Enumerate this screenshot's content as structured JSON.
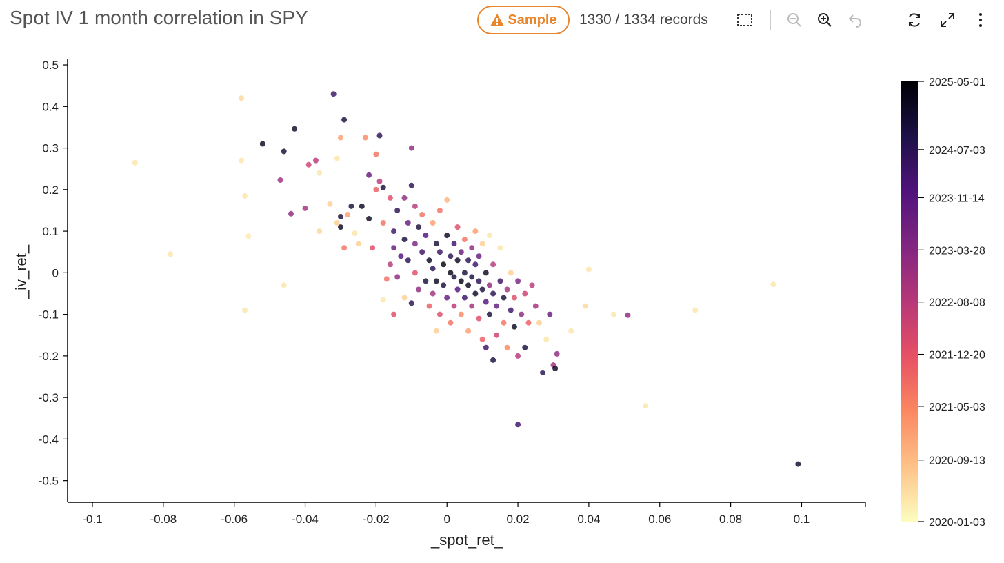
{
  "header": {
    "title": "Spot IV 1 month correlation in SPY",
    "sample_label": "Sample",
    "records_text": "1330 / 1334 records"
  },
  "toolbar": {
    "icons": [
      "select-box-icon",
      "zoom-out-icon",
      "zoom-in-icon",
      "undo-icon",
      "refresh-icon",
      "expand-icon",
      "more-vertical-icon"
    ]
  },
  "colors": {
    "accent": "#e8862e",
    "colormap": [
      "#fcfdbf",
      "#fec287",
      "#fb8861",
      "#e65164",
      "#b73779",
      "#822681",
      "#51127c",
      "#1d1147",
      "#000004"
    ]
  },
  "chart_data": {
    "type": "scatter",
    "xlabel": "_spot_ret_",
    "ylabel": "_iv_ret_",
    "xlim": [
      -0.107,
      0.118
    ],
    "ylim": [
      -0.552,
      0.515
    ],
    "x_ticks": [
      -0.1,
      -0.08,
      -0.06,
      -0.04,
      -0.02,
      0,
      0.02,
      0.04,
      0.06,
      0.08,
      0.1
    ],
    "x_tick_labels": [
      "-0.1",
      "-0.08",
      "-0.06",
      "-0.04",
      "-0.02",
      "0",
      "0.02",
      "0.04",
      "0.06",
      "0.08",
      "0.1"
    ],
    "y_ticks": [
      0.5,
      0.4,
      0.3,
      0.2,
      0.1,
      0,
      -0.1,
      -0.2,
      -0.3,
      -0.4,
      -0.5
    ],
    "y_tick_labels": [
      "0.5",
      "0.4",
      "0.3",
      "0.2",
      "0.1",
      "0",
      "-0.1",
      "-0.2",
      "-0.3",
      "-0.4",
      "-0.5"
    ],
    "colorbar": {
      "label_values": [
        1,
        0.845,
        0.736,
        0.617,
        0.499,
        0.38,
        0.262,
        0.14,
        0
      ],
      "labels": [
        "2025-05-01",
        "2024-07-03",
        "2023-11-14",
        "2023-03-28",
        "2022-08-08",
        "2021-12-20",
        "2021-05-03",
        "2020-09-13",
        "2020-01-03"
      ]
    },
    "point_color_value": "date mapped to [0,1] (0 = 2020-01-03, 1 = 2025-05-01)",
    "points": [
      [
        -0.088,
        0.265,
        0.05
      ],
      [
        -0.078,
        0.045,
        0.05
      ],
      [
        -0.058,
        0.42,
        0.08
      ],
      [
        -0.058,
        0.27,
        0.05
      ],
      [
        -0.057,
        0.185,
        0.05
      ],
      [
        -0.057,
        -0.09,
        0.05
      ],
      [
        -0.056,
        0.088,
        0.04
      ],
      [
        -0.052,
        0.31,
        0.95
      ],
      [
        -0.047,
        0.223,
        0.55
      ],
      [
        -0.046,
        0.292,
        0.92
      ],
      [
        -0.046,
        -0.03,
        0.05
      ],
      [
        -0.044,
        0.142,
        0.6
      ],
      [
        -0.043,
        0.346,
        0.93
      ],
      [
        -0.04,
        0.155,
        0.55
      ],
      [
        -0.039,
        0.26,
        0.45
      ],
      [
        -0.037,
        0.27,
        0.5
      ],
      [
        -0.036,
        0.24,
        0.05
      ],
      [
        -0.036,
        0.1,
        0.08
      ],
      [
        -0.033,
        0.165,
        0.1
      ],
      [
        -0.032,
        0.43,
        0.8
      ],
      [
        -0.031,
        0.12,
        0.1
      ],
      [
        -0.031,
        0.275,
        0.05
      ],
      [
        -0.03,
        0.325,
        0.2
      ],
      [
        -0.03,
        0.135,
        0.9
      ],
      [
        -0.03,
        0.11,
        0.95
      ],
      [
        -0.029,
        0.368,
        0.9
      ],
      [
        -0.029,
        0.06,
        0.3
      ],
      [
        -0.028,
        0.14,
        0.2
      ],
      [
        -0.027,
        0.16,
        0.9
      ],
      [
        -0.026,
        0.095,
        0.05
      ],
      [
        -0.025,
        0.07,
        0.1
      ],
      [
        -0.024,
        0.16,
        0.95
      ],
      [
        -0.023,
        0.325,
        0.25
      ],
      [
        -0.022,
        0.235,
        0.7
      ],
      [
        -0.022,
        0.13,
        0.95
      ],
      [
        -0.021,
        0.06,
        0.4
      ],
      [
        -0.02,
        0.285,
        0.3
      ],
      [
        -0.02,
        0.2,
        0.35
      ],
      [
        -0.019,
        0.33,
        0.85
      ],
      [
        -0.019,
        0.22,
        0.5
      ],
      [
        -0.018,
        0.205,
        0.9
      ],
      [
        -0.018,
        0.12,
        0.3
      ],
      [
        -0.018,
        -0.065,
        0.05
      ],
      [
        -0.017,
        -0.015,
        0.3
      ],
      [
        -0.016,
        0.18,
        0.4
      ],
      [
        -0.016,
        0.02,
        0.5
      ],
      [
        -0.015,
        0.1,
        0.8
      ],
      [
        -0.015,
        0.06,
        0.7
      ],
      [
        -0.015,
        -0.1,
        0.4
      ],
      [
        -0.014,
        0.15,
        0.85
      ],
      [
        -0.014,
        -0.01,
        0.6
      ],
      [
        -0.013,
        0.04,
        0.75
      ],
      [
        -0.012,
        0.18,
        0.6
      ],
      [
        -0.012,
        0.08,
        0.9
      ],
      [
        -0.012,
        -0.06,
        0.1
      ],
      [
        -0.011,
        0.12,
        0.7
      ],
      [
        -0.011,
        0.03,
        0.85
      ],
      [
        -0.01,
        0.3,
        0.6
      ],
      [
        -0.01,
        0.21,
        0.85
      ],
      [
        -0.01,
        -0.073,
        0.85
      ],
      [
        -0.009,
        0.16,
        0.5
      ],
      [
        -0.009,
        0.07,
        0.65
      ],
      [
        -0.009,
        0.0,
        0.4
      ],
      [
        -0.008,
        0.11,
        0.9
      ],
      [
        -0.008,
        -0.04,
        0.6
      ],
      [
        -0.007,
        0.05,
        0.8
      ],
      [
        -0.007,
        0.14,
        0.3
      ],
      [
        -0.006,
        -0.02,
        0.9
      ],
      [
        -0.006,
        0.09,
        0.75
      ],
      [
        -0.005,
        0.03,
        0.95
      ],
      [
        -0.005,
        -0.08,
        0.35
      ],
      [
        -0.004,
        0.12,
        0.2
      ],
      [
        -0.004,
        0.01,
        0.85
      ],
      [
        -0.004,
        -0.05,
        0.55
      ],
      [
        -0.003,
        0.07,
        0.9
      ],
      [
        -0.003,
        -0.02,
        0.95
      ],
      [
        -0.003,
        -0.14,
        0.1
      ],
      [
        -0.002,
        0.05,
        0.8
      ],
      [
        -0.002,
        0.15,
        0.3
      ],
      [
        -0.002,
        -0.1,
        0.4
      ],
      [
        -0.001,
        0.02,
        0.98
      ],
      [
        -0.001,
        -0.03,
        0.9
      ],
      [
        0.0,
        0.09,
        0.95
      ],
      [
        0.0,
        -0.06,
        0.7
      ],
      [
        0.0,
        0.175,
        0.15
      ],
      [
        0.001,
        0.0,
        0.97
      ],
      [
        0.001,
        0.04,
        0.85
      ],
      [
        0.001,
        -0.12,
        0.3
      ],
      [
        0.002,
        -0.01,
        0.9
      ],
      [
        0.002,
        0.07,
        0.8
      ],
      [
        0.002,
        -0.08,
        0.5
      ],
      [
        0.003,
        0.03,
        0.95
      ],
      [
        0.003,
        -0.04,
        0.75
      ],
      [
        0.003,
        0.11,
        0.4
      ],
      [
        0.004,
        -0.02,
        0.98
      ],
      [
        0.004,
        0.05,
        0.7
      ],
      [
        0.004,
        -0.1,
        0.25
      ],
      [
        0.005,
        0.0,
        0.9
      ],
      [
        0.005,
        -0.06,
        0.8
      ],
      [
        0.005,
        0.08,
        0.3
      ],
      [
        0.006,
        0.03,
        0.85
      ],
      [
        0.006,
        -0.03,
        0.95
      ],
      [
        0.006,
        -0.14,
        0.2
      ],
      [
        0.007,
        0.06,
        0.6
      ],
      [
        0.007,
        -0.01,
        0.9
      ],
      [
        0.007,
        -0.08,
        0.55
      ],
      [
        0.008,
        0.02,
        0.8
      ],
      [
        0.008,
        -0.05,
        0.95
      ],
      [
        0.008,
        0.1,
        0.2
      ],
      [
        0.009,
        -0.02,
        0.85
      ],
      [
        0.009,
        -0.11,
        0.4
      ],
      [
        0.009,
        0.04,
        0.7
      ],
      [
        0.01,
        -0.04,
        0.9
      ],
      [
        0.01,
        -0.16,
        0.35
      ],
      [
        0.01,
        0.07,
        0.1
      ],
      [
        0.011,
        -0.07,
        0.75
      ],
      [
        0.011,
        0.0,
        0.95
      ],
      [
        0.011,
        -0.18,
        0.8
      ],
      [
        0.012,
        -0.03,
        0.6
      ],
      [
        0.012,
        -0.1,
        0.9
      ],
      [
        0.012,
        0.09,
        0.05
      ],
      [
        0.013,
        -0.21,
        0.9
      ],
      [
        0.013,
        -0.05,
        0.85
      ],
      [
        0.013,
        0.02,
        0.5
      ],
      [
        0.014,
        -0.08,
        0.7
      ],
      [
        0.014,
        -0.15,
        0.45
      ],
      [
        0.015,
        -0.02,
        0.8
      ],
      [
        0.015,
        0.06,
        0.05
      ],
      [
        0.016,
        -0.06,
        0.9
      ],
      [
        0.016,
        -0.12,
        0.3
      ],
      [
        0.017,
        -0.04,
        0.55
      ],
      [
        0.017,
        -0.18,
        0.25
      ],
      [
        0.018,
        -0.09,
        0.8
      ],
      [
        0.018,
        0.0,
        0.1
      ],
      [
        0.019,
        -0.13,
        0.95
      ],
      [
        0.019,
        -0.06,
        0.4
      ],
      [
        0.02,
        -0.365,
        0.8
      ],
      [
        0.02,
        -0.02,
        0.65
      ],
      [
        0.02,
        -0.2,
        0.5
      ],
      [
        0.021,
        -0.1,
        0.6
      ],
      [
        0.022,
        -0.18,
        0.9
      ],
      [
        0.022,
        -0.05,
        0.45
      ],
      [
        0.023,
        -0.12,
        0.35
      ],
      [
        0.024,
        -0.03,
        0.5
      ],
      [
        0.025,
        -0.08,
        0.55
      ],
      [
        0.026,
        -0.12,
        0.1
      ],
      [
        0.027,
        -0.24,
        0.85
      ],
      [
        0.028,
        -0.16,
        0.05
      ],
      [
        0.029,
        -0.1,
        0.7
      ],
      [
        0.03,
        -0.222,
        0.55
      ],
      [
        0.0305,
        -0.23,
        0.95
      ],
      [
        0.031,
        -0.195,
        0.6
      ],
      [
        0.035,
        -0.14,
        0.05
      ],
      [
        0.039,
        -0.08,
        0.08
      ],
      [
        0.04,
        0.008,
        0.05
      ],
      [
        0.047,
        -0.1,
        0.05
      ],
      [
        0.051,
        -0.102,
        0.6
      ],
      [
        0.056,
        -0.32,
        0.05
      ],
      [
        0.07,
        -0.09,
        0.05
      ],
      [
        0.092,
        -0.028,
        0.05
      ],
      [
        0.099,
        -0.46,
        0.93
      ]
    ]
  }
}
